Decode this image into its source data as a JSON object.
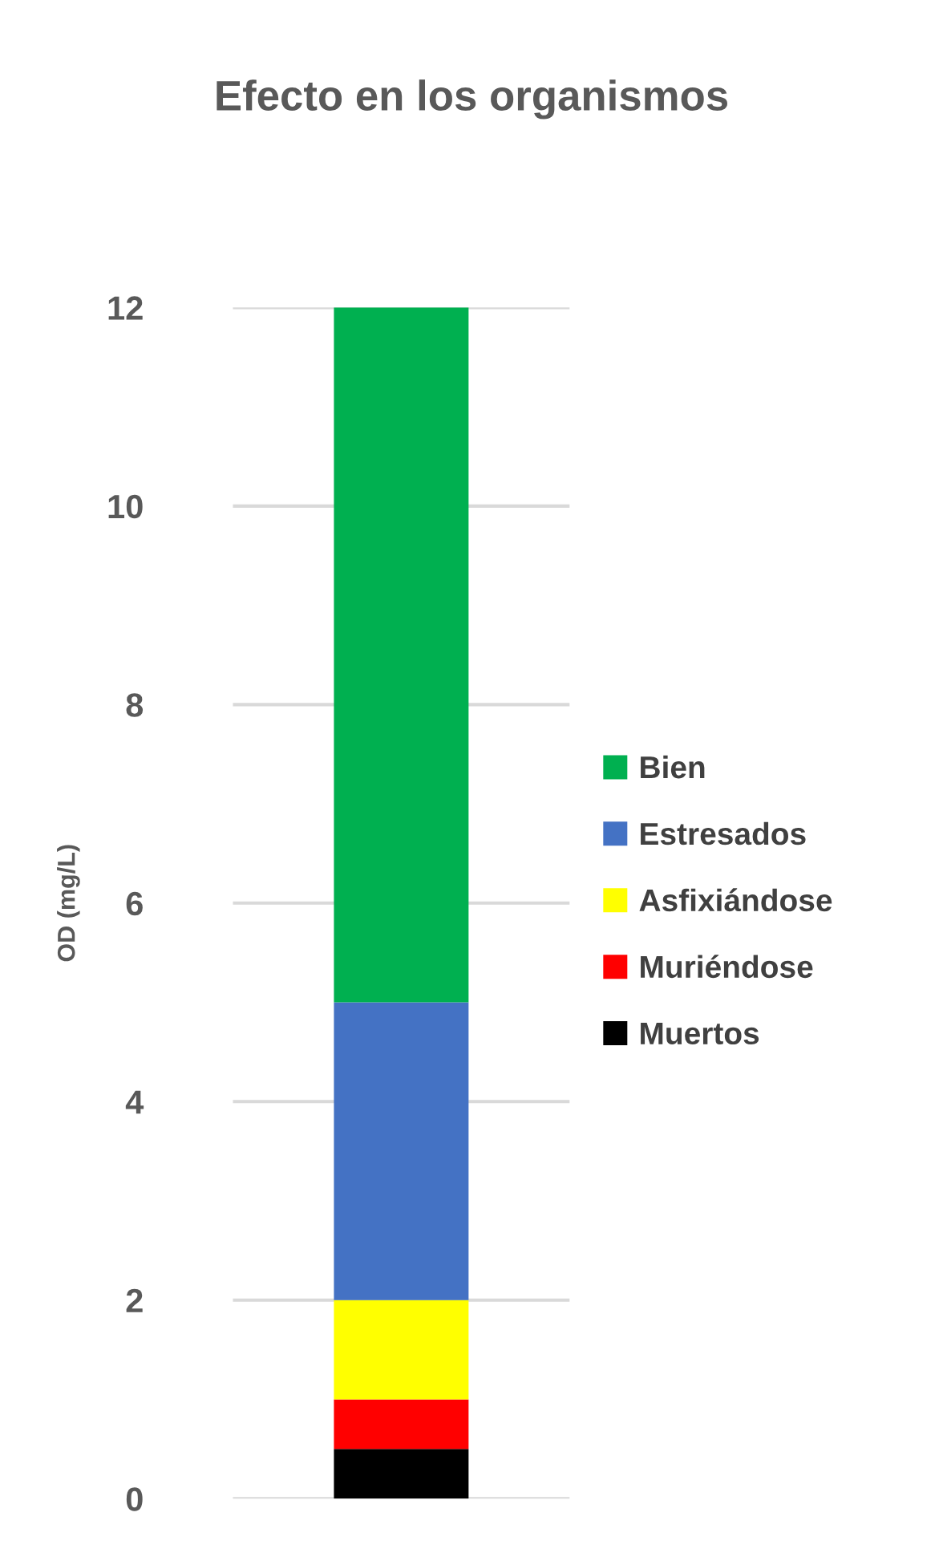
{
  "chart_data": {
    "type": "bar",
    "title": "Efecto en los organismos",
    "ylabel": "OD (mg/L)",
    "categories": [
      null
    ],
    "stacked": true,
    "series": [
      {
        "name": "Muertos",
        "color": "#000000",
        "values": [
          0.5
        ]
      },
      {
        "name": "Muriéndose",
        "color": "#ff0000",
        "values": [
          0.5
        ]
      },
      {
        "name": "Asfixiándose",
        "color": "#ffff00",
        "values": [
          1
        ]
      },
      {
        "name": "Estresados",
        "color": "#4472c4",
        "values": [
          3
        ]
      },
      {
        "name": "Bien",
        "color": "#00b050",
        "values": [
          7
        ]
      }
    ],
    "ylim": [
      0,
      12
    ],
    "yticks": [
      0,
      2,
      4,
      6,
      8,
      10,
      12
    ],
    "grid": "y",
    "legend": "right"
  }
}
